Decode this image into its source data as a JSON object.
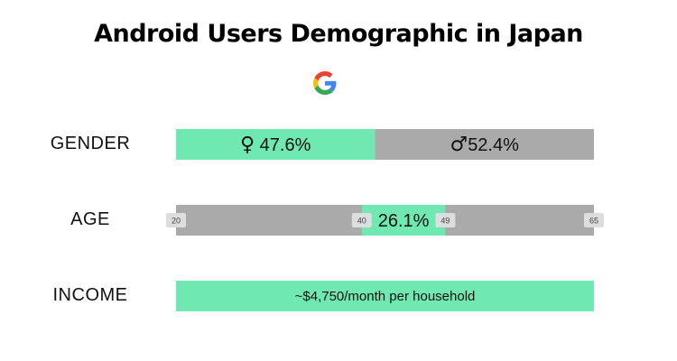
{
  "title": "Android Users Demographic in Japan",
  "logo_icon": "google-g-logo",
  "colors": {
    "green": "#6fe8b2",
    "gray": "#aaaaaa",
    "tick_bg": "#dddddd"
  },
  "chart_data": {
    "type": "bar",
    "title": "Android Users Demographic in Japan",
    "rows": [
      {
        "label": "GENDER",
        "segments": [
          {
            "share": 47.6,
            "color": "green",
            "text": "47.6%",
            "icon": "female-symbol-icon",
            "symbol": "♀"
          },
          {
            "share": 52.4,
            "color": "gray",
            "text": "52.4%",
            "icon": "male-symbol-icon",
            "symbol": "♂"
          }
        ]
      },
      {
        "label": "AGE",
        "axis_range": [
          20,
          65
        ],
        "ticks": [
          "20",
          "40",
          "49",
          "65"
        ],
        "tick_values": [
          20,
          40,
          49,
          65
        ],
        "highlight": {
          "from": 40,
          "to": 49,
          "text": "26.1%",
          "value": 26.1
        }
      },
      {
        "label": "INCOME",
        "text": "~$4,750/month per household"
      }
    ]
  }
}
